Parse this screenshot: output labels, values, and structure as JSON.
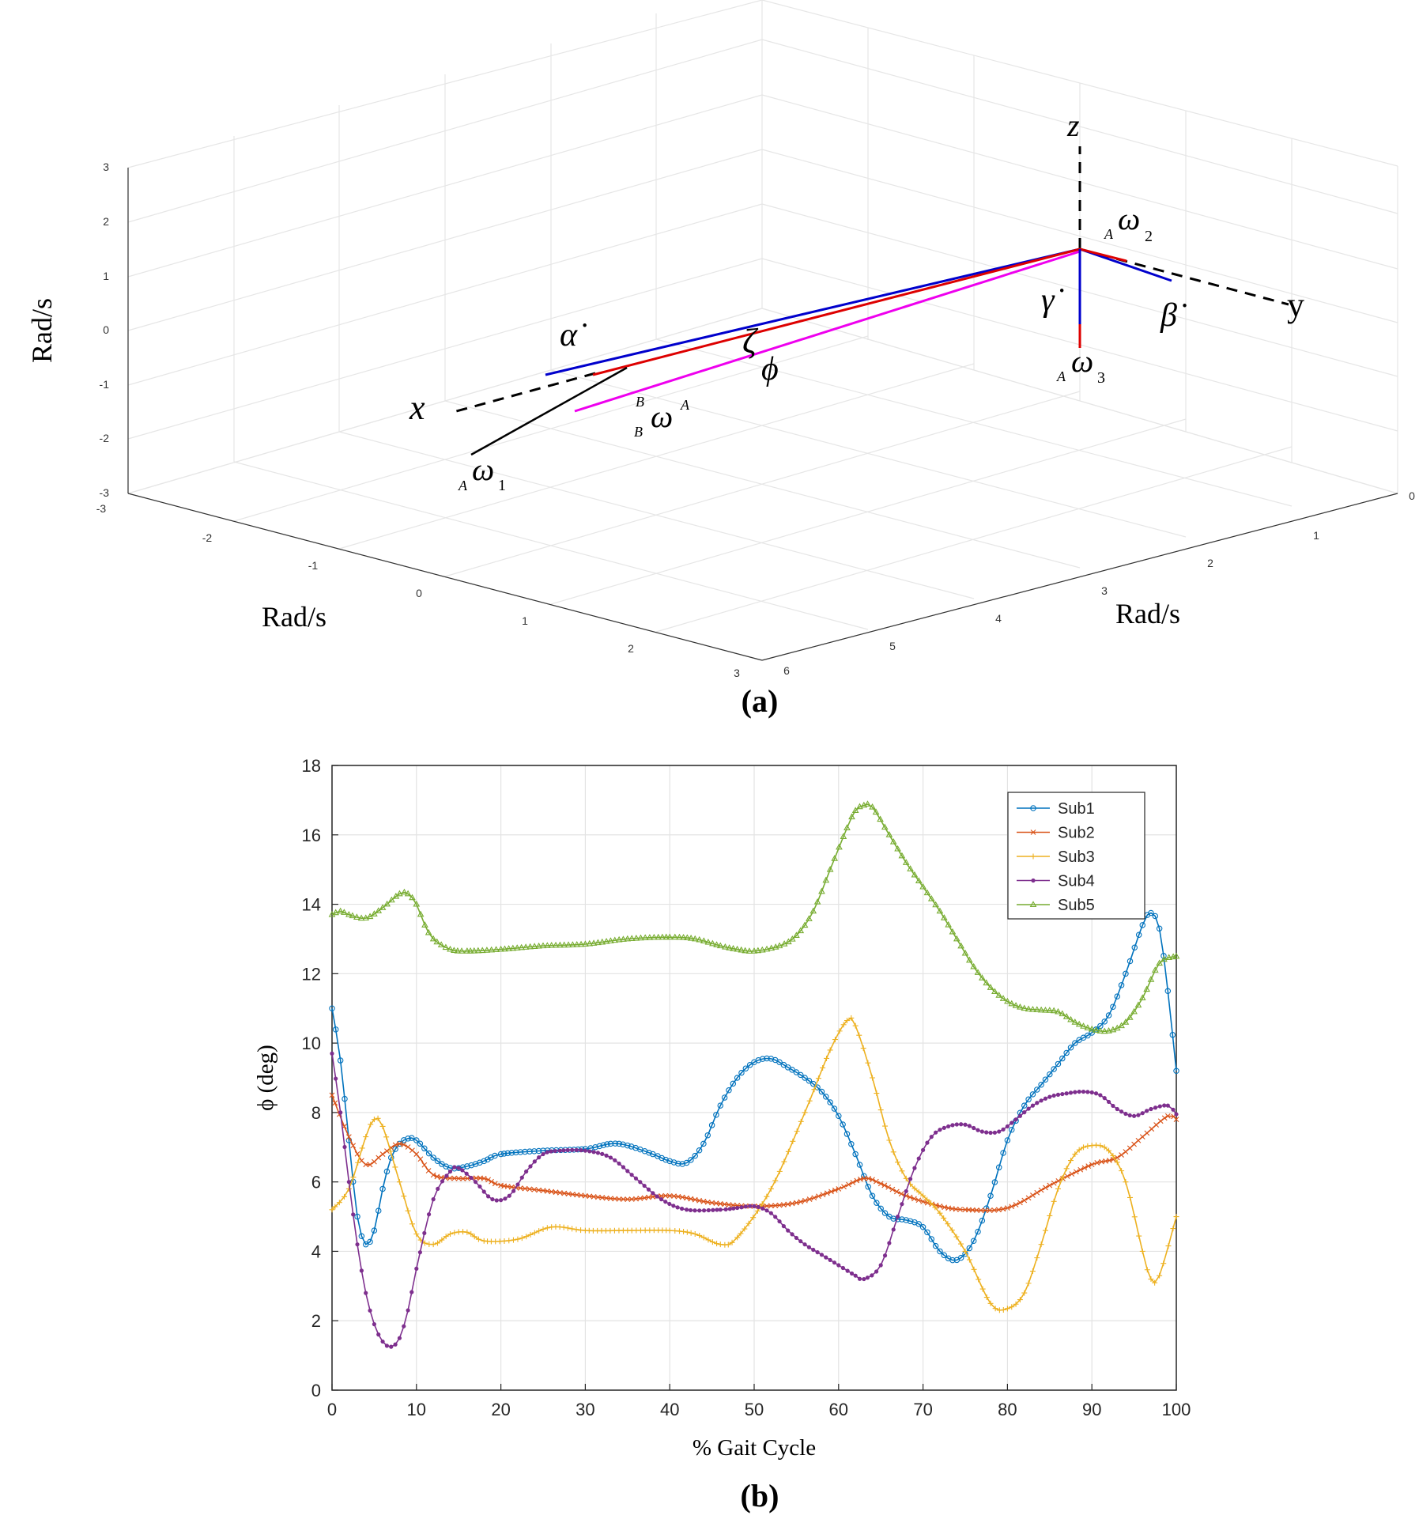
{
  "panel_a": {
    "caption": "(a)",
    "axis_label_z": "Rad/s",
    "axis_label_x": "Rad/s",
    "axis_label_y": "Rad/s",
    "z_ticks": [
      "3",
      "2",
      "1",
      "0",
      "-1",
      "-2",
      "-3"
    ],
    "x_ticks": [
      "-3",
      "-2",
      "-1",
      "0",
      "1",
      "2",
      "3"
    ],
    "y_ticks": [
      "6",
      "5",
      "4",
      "3",
      "2",
      "1",
      "0"
    ],
    "labels": {
      "x_axis": "x",
      "y_axis": "y",
      "z_axis": "z",
      "alpha_dot": "α̇",
      "beta_dot": "β̇",
      "gamma_dot": "γ̇",
      "zeta": "ζ",
      "phi": "ϕ",
      "omega": "ω",
      "omega1_sub": "A",
      "omega1_idx": "1",
      "omega2_sub": "A",
      "omega2_idx": "2",
      "omega3_sub": "A",
      "omega3_idx": "3",
      "bwa_pre_sup": "B",
      "bwa_pre_sub": "B",
      "bwa_sup": "A"
    },
    "colors": {
      "blue": "#0000cc",
      "red": "#dd0000",
      "magenta": "#ee00ee",
      "black": "#000000"
    }
  },
  "panel_b": {
    "caption": "(b)"
  },
  "chart_data": {
    "type": "line",
    "xlabel": "% Gait Cycle",
    "ylabel": "ϕ (deg)",
    "xlim": [
      0,
      100
    ],
    "ylim": [
      0,
      18
    ],
    "xticks": [
      0,
      10,
      20,
      30,
      40,
      50,
      60,
      70,
      80,
      90,
      100
    ],
    "yticks": [
      0,
      2,
      4,
      6,
      8,
      10,
      12,
      14,
      16,
      18
    ],
    "grid": true,
    "legend_position": "top-right",
    "series": [
      {
        "name": "Sub1",
        "color": "#0072BD",
        "marker": "circle",
        "points": [
          [
            0,
            11.0
          ],
          [
            1,
            9.5
          ],
          [
            2,
            7.2
          ],
          [
            3,
            5.0
          ],
          [
            4,
            4.2
          ],
          [
            5,
            4.6
          ],
          [
            6,
            5.8
          ],
          [
            7,
            6.7
          ],
          [
            8,
            7.1
          ],
          [
            9,
            7.25
          ],
          [
            10,
            7.2
          ],
          [
            12,
            6.7
          ],
          [
            14,
            6.4
          ],
          [
            16,
            6.45
          ],
          [
            18,
            6.6
          ],
          [
            20,
            6.8
          ],
          [
            25,
            6.9
          ],
          [
            30,
            6.95
          ],
          [
            33,
            7.1
          ],
          [
            35,
            7.05
          ],
          [
            38,
            6.8
          ],
          [
            40,
            6.6
          ],
          [
            42,
            6.55
          ],
          [
            44,
            7.1
          ],
          [
            46,
            8.2
          ],
          [
            48,
            9.0
          ],
          [
            50,
            9.45
          ],
          [
            52,
            9.55
          ],
          [
            54,
            9.3
          ],
          [
            56,
            9.0
          ],
          [
            58,
            8.6
          ],
          [
            60,
            7.9
          ],
          [
            62,
            6.8
          ],
          [
            64,
            5.6
          ],
          [
            66,
            5.0
          ],
          [
            68,
            4.9
          ],
          [
            70,
            4.7
          ],
          [
            72,
            4.0
          ],
          [
            74,
            3.75
          ],
          [
            76,
            4.3
          ],
          [
            78,
            5.6
          ],
          [
            80,
            7.2
          ],
          [
            82,
            8.2
          ],
          [
            84,
            8.8
          ],
          [
            86,
            9.4
          ],
          [
            88,
            10.0
          ],
          [
            90,
            10.3
          ],
          [
            92,
            10.8
          ],
          [
            94,
            12.0
          ],
          [
            96,
            13.4
          ],
          [
            97,
            13.75
          ],
          [
            98,
            13.3
          ],
          [
            99,
            11.5
          ],
          [
            100,
            9.2
          ]
        ]
      },
      {
        "name": "Sub2",
        "color": "#D95319",
        "marker": "x",
        "points": [
          [
            0,
            8.5
          ],
          [
            2,
            7.3
          ],
          [
            4,
            6.5
          ],
          [
            6,
            6.8
          ],
          [
            8,
            7.1
          ],
          [
            10,
            6.8
          ],
          [
            12,
            6.2
          ],
          [
            15,
            6.1
          ],
          [
            18,
            6.1
          ],
          [
            20,
            5.9
          ],
          [
            25,
            5.75
          ],
          [
            30,
            5.6
          ],
          [
            35,
            5.5
          ],
          [
            40,
            5.6
          ],
          [
            45,
            5.4
          ],
          [
            50,
            5.3
          ],
          [
            55,
            5.4
          ],
          [
            60,
            5.8
          ],
          [
            63,
            6.1
          ],
          [
            65,
            5.95
          ],
          [
            68,
            5.6
          ],
          [
            72,
            5.3
          ],
          [
            75,
            5.2
          ],
          [
            80,
            5.25
          ],
          [
            85,
            5.9
          ],
          [
            90,
            6.5
          ],
          [
            93,
            6.7
          ],
          [
            96,
            7.3
          ],
          [
            99,
            7.9
          ],
          [
            100,
            7.8
          ]
        ]
      },
      {
        "name": "Sub3",
        "color": "#EDB120",
        "marker": "plus",
        "points": [
          [
            0,
            5.2
          ],
          [
            2,
            5.8
          ],
          [
            4,
            7.3
          ],
          [
            5,
            7.8
          ],
          [
            6,
            7.6
          ],
          [
            8,
            6.0
          ],
          [
            10,
            4.5
          ],
          [
            12,
            4.2
          ],
          [
            14,
            4.5
          ],
          [
            16,
            4.55
          ],
          [
            18,
            4.3
          ],
          [
            22,
            4.35
          ],
          [
            26,
            4.7
          ],
          [
            30,
            4.6
          ],
          [
            35,
            4.6
          ],
          [
            40,
            4.6
          ],
          [
            43,
            4.5
          ],
          [
            46,
            4.2
          ],
          [
            48,
            4.4
          ],
          [
            52,
            5.8
          ],
          [
            56,
            8.0
          ],
          [
            59,
            9.8
          ],
          [
            61,
            10.65
          ],
          [
            62,
            10.5
          ],
          [
            64,
            9.0
          ],
          [
            66,
            7.2
          ],
          [
            68,
            6.1
          ],
          [
            70,
            5.6
          ],
          [
            72,
            5.1
          ],
          [
            75,
            4.0
          ],
          [
            78,
            2.5
          ],
          [
            80,
            2.35
          ],
          [
            82,
            2.8
          ],
          [
            84,
            4.2
          ],
          [
            86,
            5.8
          ],
          [
            88,
            6.8
          ],
          [
            90,
            7.05
          ],
          [
            92,
            6.9
          ],
          [
            94,
            6.0
          ],
          [
            96,
            4.0
          ],
          [
            97,
            3.2
          ],
          [
            98,
            3.3
          ],
          [
            100,
            5.0
          ]
        ]
      },
      {
        "name": "Sub4",
        "color": "#7E2F8E",
        "marker": "dot",
        "points": [
          [
            0,
            9.7
          ],
          [
            1,
            8.0
          ],
          [
            2,
            6.0
          ],
          [
            3,
            4.2
          ],
          [
            4,
            2.8
          ],
          [
            5,
            1.9
          ],
          [
            6,
            1.4
          ],
          [
            7,
            1.25
          ],
          [
            8,
            1.5
          ],
          [
            9,
            2.3
          ],
          [
            10,
            3.5
          ],
          [
            12,
            5.5
          ],
          [
            14,
            6.3
          ],
          [
            15,
            6.4
          ],
          [
            17,
            6.0
          ],
          [
            19,
            5.5
          ],
          [
            21,
            5.6
          ],
          [
            23,
            6.3
          ],
          [
            25,
            6.8
          ],
          [
            27,
            6.9
          ],
          [
            30,
            6.9
          ],
          [
            33,
            6.7
          ],
          [
            36,
            6.1
          ],
          [
            39,
            5.5
          ],
          [
            42,
            5.2
          ],
          [
            46,
            5.2
          ],
          [
            48,
            5.25
          ],
          [
            50,
            5.3
          ],
          [
            52,
            5.1
          ],
          [
            54,
            4.6
          ],
          [
            56,
            4.2
          ],
          [
            58,
            3.9
          ],
          [
            60,
            3.6
          ],
          [
            62,
            3.3
          ],
          [
            63,
            3.2
          ],
          [
            65,
            3.6
          ],
          [
            67,
            5.0
          ],
          [
            69,
            6.4
          ],
          [
            71,
            7.3
          ],
          [
            73,
            7.6
          ],
          [
            75,
            7.65
          ],
          [
            77,
            7.45
          ],
          [
            79,
            7.45
          ],
          [
            81,
            7.8
          ],
          [
            83,
            8.2
          ],
          [
            85,
            8.45
          ],
          [
            87,
            8.55
          ],
          [
            89,
            8.6
          ],
          [
            91,
            8.5
          ],
          [
            93,
            8.1
          ],
          [
            95,
            7.9
          ],
          [
            97,
            8.1
          ],
          [
            99,
            8.2
          ],
          [
            100,
            7.95
          ]
        ]
      },
      {
        "name": "Sub5",
        "color": "#77AC30",
        "marker": "triangle",
        "points": [
          [
            0,
            13.7
          ],
          [
            1,
            13.8
          ],
          [
            2,
            13.7
          ],
          [
            4,
            13.6
          ],
          [
            6,
            13.9
          ],
          [
            8,
            14.3
          ],
          [
            9,
            14.3
          ],
          [
            10,
            14.0
          ],
          [
            11,
            13.4
          ],
          [
            12,
            13.0
          ],
          [
            14,
            12.7
          ],
          [
            16,
            12.65
          ],
          [
            20,
            12.7
          ],
          [
            25,
            12.8
          ],
          [
            30,
            12.85
          ],
          [
            35,
            13.0
          ],
          [
            40,
            13.05
          ],
          [
            43,
            13.0
          ],
          [
            46,
            12.8
          ],
          [
            48,
            12.7
          ],
          [
            50,
            12.65
          ],
          [
            53,
            12.8
          ],
          [
            55,
            13.1
          ],
          [
            57,
            13.8
          ],
          [
            59,
            15.0
          ],
          [
            61,
            16.2
          ],
          [
            62,
            16.7
          ],
          [
            63,
            16.85
          ],
          [
            64,
            16.8
          ],
          [
            66,
            16.0
          ],
          [
            68,
            15.2
          ],
          [
            70,
            14.5
          ],
          [
            72,
            13.8
          ],
          [
            74,
            13.0
          ],
          [
            76,
            12.2
          ],
          [
            78,
            11.6
          ],
          [
            80,
            11.2
          ],
          [
            82,
            11.0
          ],
          [
            84,
            10.95
          ],
          [
            86,
            10.9
          ],
          [
            88,
            10.6
          ],
          [
            90,
            10.4
          ],
          [
            92,
            10.35
          ],
          [
            94,
            10.6
          ],
          [
            96,
            11.3
          ],
          [
            98,
            12.3
          ],
          [
            100,
            12.5
          ]
        ]
      }
    ]
  }
}
